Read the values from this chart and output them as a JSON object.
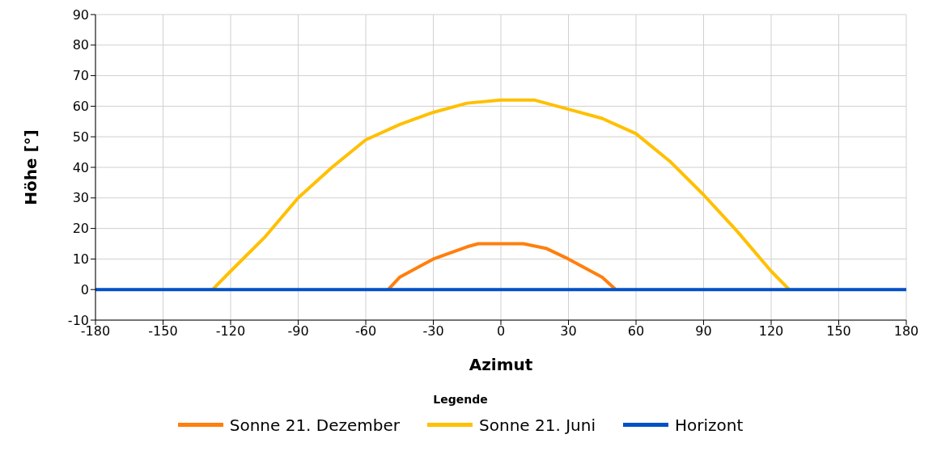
{
  "chart_data": {
    "type": "line",
    "xlabel": "Azimut",
    "ylabel": "Höhe [°]",
    "legend_title": "Legende",
    "legend": "bottom",
    "grid": true,
    "marker": "none",
    "line_style": "solid",
    "xlim": [
      -180,
      180
    ],
    "xticks": [
      -180,
      -150,
      -120,
      -90,
      -60,
      -30,
      0,
      30,
      60,
      90,
      120,
      150,
      180
    ],
    "ylim": [
      -10,
      90
    ],
    "yticks": [
      -10,
      0,
      10,
      20,
      30,
      40,
      50,
      60,
      70,
      80,
      90
    ],
    "series": [
      {
        "name": "Sonne 21. Dezember",
        "color": "#ff7f0e",
        "x": [
          -50,
          -45,
          -30,
          -15,
          -10,
          10,
          20,
          30,
          45,
          51
        ],
        "values": [
          0,
          4,
          10,
          14,
          15,
          15,
          13.5,
          10,
          4,
          0
        ]
      },
      {
        "name": "Sonne 21. Juni",
        "color": "#ffc000",
        "x": [
          -128,
          -120,
          -105,
          -90,
          -75,
          -60,
          -45,
          -30,
          -15,
          0,
          15,
          30,
          45,
          60,
          75,
          90,
          105,
          120,
          128
        ],
        "values": [
          0,
          6,
          17,
          30,
          40,
          49,
          54,
          58,
          61,
          62,
          62,
          59,
          56,
          51,
          42,
          31,
          19,
          6,
          0
        ]
      },
      {
        "name": "Horizont",
        "color": "#0050c8",
        "x": [
          -180,
          180
        ],
        "values": [
          0,
          0
        ]
      }
    ]
  }
}
